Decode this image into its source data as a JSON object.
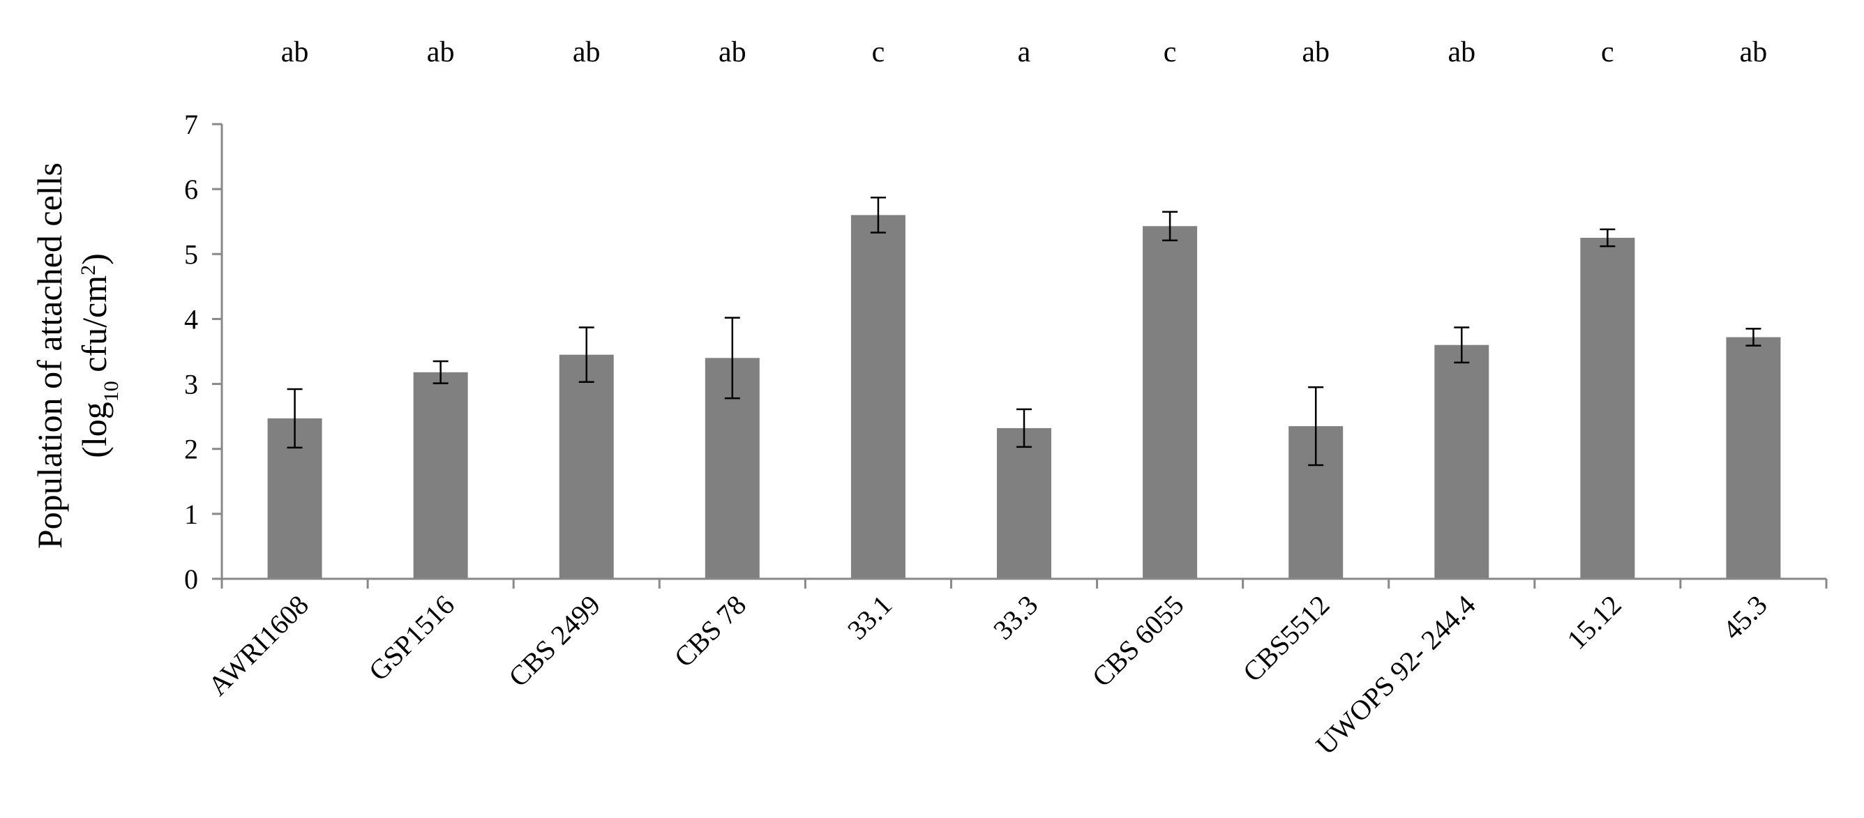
{
  "chart_data": {
    "type": "bar",
    "title": "",
    "xlabel": "",
    "ylabel": {
      "line1": "Population of attached cells",
      "line2_open": "(log",
      "line2_sub": "10",
      "line2_mid": " cfu/cm",
      "line2_sup": "2",
      "line2_close": ")"
    },
    "ylim": [
      0,
      7
    ],
    "yticks": [
      0,
      1,
      2,
      3,
      4,
      5,
      6,
      7
    ],
    "grid": false,
    "legend": "none",
    "bar_color": "#808080",
    "categories": [
      "AWRI1608",
      "GSP1516",
      "CBS 2499",
      "CBS 78",
      "33.1",
      "33.3",
      "CBS 6055",
      "CBS5512",
      "UWOPS 92- 244.4",
      "15.12",
      "45.3"
    ],
    "values": [
      2.47,
      3.18,
      3.45,
      3.4,
      5.6,
      2.32,
      5.43,
      2.35,
      3.6,
      5.25,
      3.72
    ],
    "errors": [
      0.45,
      0.17,
      0.42,
      0.62,
      0.27,
      0.29,
      0.22,
      0.6,
      0.27,
      0.13,
      0.13
    ],
    "significance": [
      "ab",
      "ab",
      "ab",
      "ab",
      "c",
      "a",
      "c",
      "ab",
      "ab",
      "c",
      "ab"
    ]
  }
}
